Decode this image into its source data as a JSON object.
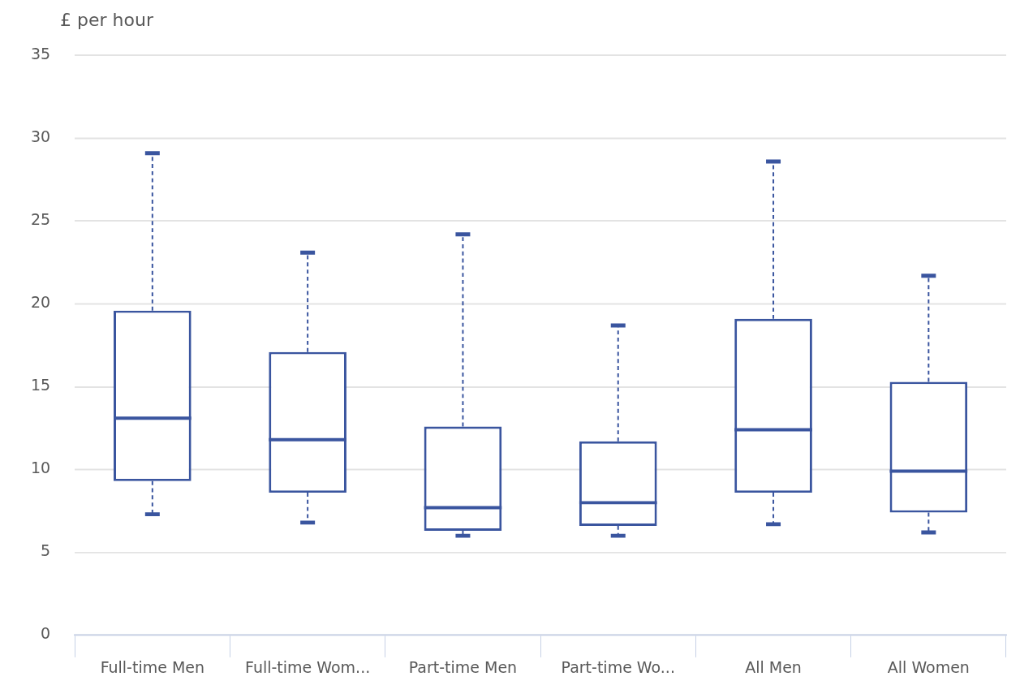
{
  "chart_data": {
    "type": "box",
    "ylabel": "£ per hour",
    "categories": [
      "Full-time Men",
      "Full-time Wom...",
      "Part-time Men",
      "Part-time Wo...",
      "All Men",
      "All Women"
    ],
    "color": "#3a559f",
    "boxes": [
      {
        "low": 7.3,
        "q1": 9.3,
        "median": 13.1,
        "q3": 19.6,
        "high": 29.1
      },
      {
        "low": 6.8,
        "q1": 8.6,
        "median": 11.8,
        "q3": 17.1,
        "high": 23.1
      },
      {
        "low": 6.0,
        "q1": 6.3,
        "median": 7.7,
        "q3": 12.6,
        "high": 24.2
      },
      {
        "low": 6.0,
        "q1": 6.6,
        "median": 8.0,
        "q3": 11.7,
        "high": 18.7
      },
      {
        "low": 6.7,
        "q1": 8.6,
        "median": 12.4,
        "q3": 19.1,
        "high": 28.6
      },
      {
        "low": 6.2,
        "q1": 7.4,
        "median": 9.9,
        "q3": 15.3,
        "high": 21.7
      }
    ],
    "ylim": [
      0,
      35
    ],
    "yticks": [
      0,
      5,
      10,
      15,
      20,
      25,
      30,
      35
    ],
    "grid": "y",
    "line_style": "dashed"
  }
}
